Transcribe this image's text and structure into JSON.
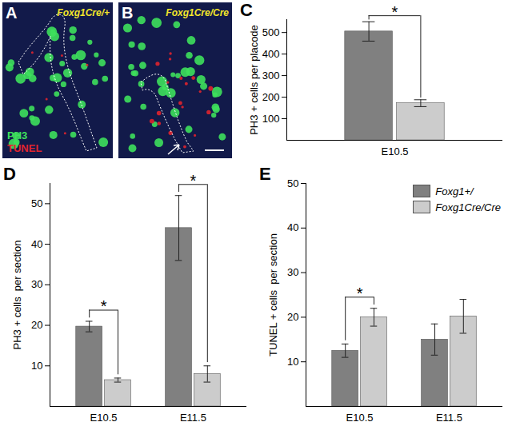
{
  "images": [
    {
      "panel": "A",
      "label": "Foxg1Cre/+",
      "stains": [
        {
          "text": "PH3",
          "color": "#3ee05c"
        },
        {
          "text": "TUNEL",
          "color": "#e0242e"
        }
      ]
    },
    {
      "panel": "B",
      "label": "Foxg1Cre/Cre"
    }
  ],
  "chart_data": [
    {
      "type": "bar",
      "panel": "C",
      "ylabel": "PH3 + cells per placode",
      "categories": [
        "E10.5"
      ],
      "series": [
        {
          "name": "Foxg1+/",
          "color": "#808080",
          "values": [
            505
          ],
          "errors": [
            45
          ]
        },
        {
          "name": "Foxg1Cre/Cre",
          "color": "#cccccc",
          "values": [
            172
          ],
          "errors": [
            16
          ]
        }
      ],
      "ylim": [
        0,
        560
      ],
      "yticks": [
        100,
        200,
        300,
        400,
        500
      ],
      "annotations": [
        {
          "text": "*",
          "category": "E10.5"
        }
      ]
    },
    {
      "type": "bar",
      "panel": "D",
      "ylabel": "PH3 + cells  per section",
      "categories": [
        "E10.5",
        "E11.5"
      ],
      "series": [
        {
          "name": "Foxg1+/",
          "color": "#808080",
          "values": [
            19.7,
            44
          ],
          "errors": [
            1.3,
            8
          ]
        },
        {
          "name": "Foxg1Cre/Cre",
          "color": "#cccccc",
          "values": [
            6.5,
            8
          ],
          "errors": [
            0.5,
            2
          ]
        }
      ],
      "ylim": [
        0,
        55
      ],
      "yticks": [
        10,
        20,
        30,
        40,
        50
      ],
      "annotations": [
        {
          "text": "*",
          "category": "E10.5"
        },
        {
          "text": "*",
          "category": "E11.5"
        }
      ]
    },
    {
      "type": "bar",
      "panel": "E",
      "ylabel": "TUNEL + cells  per section",
      "categories": [
        "E10.5",
        "E11.5"
      ],
      "series": [
        {
          "name": "Foxg1+/",
          "color": "#808080",
          "values": [
            12.5,
            15
          ],
          "errors": [
            1.5,
            3.5
          ]
        },
        {
          "name": "Foxg1Cre/Cre",
          "color": "#cccccc",
          "values": [
            20,
            20.2
          ],
          "errors": [
            2,
            3.8
          ]
        }
      ],
      "ylim": [
        0,
        50
      ],
      "yticks": [
        10,
        20,
        30,
        40,
        50
      ],
      "legend": "top-right",
      "annotations": [
        {
          "text": "*",
          "category": "E10.5"
        }
      ]
    }
  ]
}
